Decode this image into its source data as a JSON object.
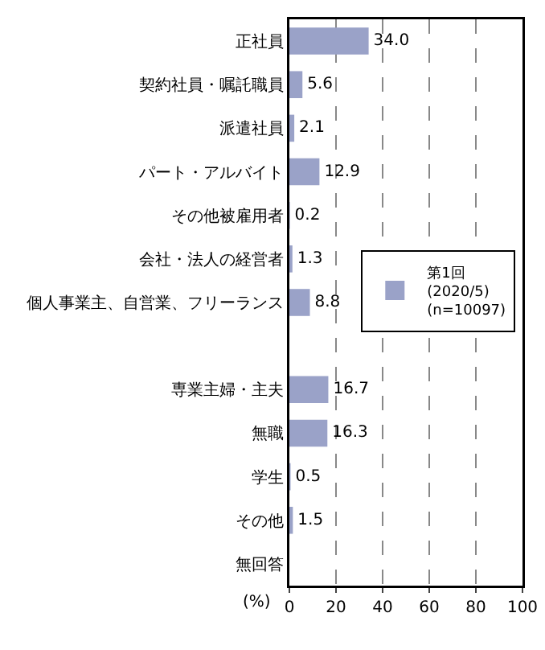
{
  "chart_data": {
    "type": "bar",
    "orientation": "horizontal",
    "xlabel": "(%)",
    "categories": [
      "正社員",
      "契約社員・嘱託職員",
      "派遣社員",
      "パート・アルバイト",
      "その他被雇用者",
      "会社・法人の経営者",
      "個人事業主、自営業、フリーランス",
      null,
      "専業主婦・主夫",
      "無職",
      "学生",
      "その他",
      "無回答"
    ],
    "series": [
      {
        "name": "第1回\n(2020/5)\n(n=10097)",
        "color": "#9aa2c8",
        "values": [
          34.0,
          5.6,
          2.1,
          12.9,
          0.2,
          1.3,
          8.8,
          null,
          16.7,
          16.3,
          0.5,
          1.5,
          null
        ],
        "value_labels": [
          "34.0",
          "5.6",
          "2.1",
          "12.9",
          "0.2",
          "1.3",
          "8.8",
          null,
          "16.7",
          "16.3",
          "0.5",
          "1.5",
          null
        ]
      }
    ],
    "xlim": [
      0,
      100
    ],
    "xticks": [
      0,
      20,
      40,
      60,
      80,
      100
    ],
    "grid": "x",
    "legend": "right"
  }
}
